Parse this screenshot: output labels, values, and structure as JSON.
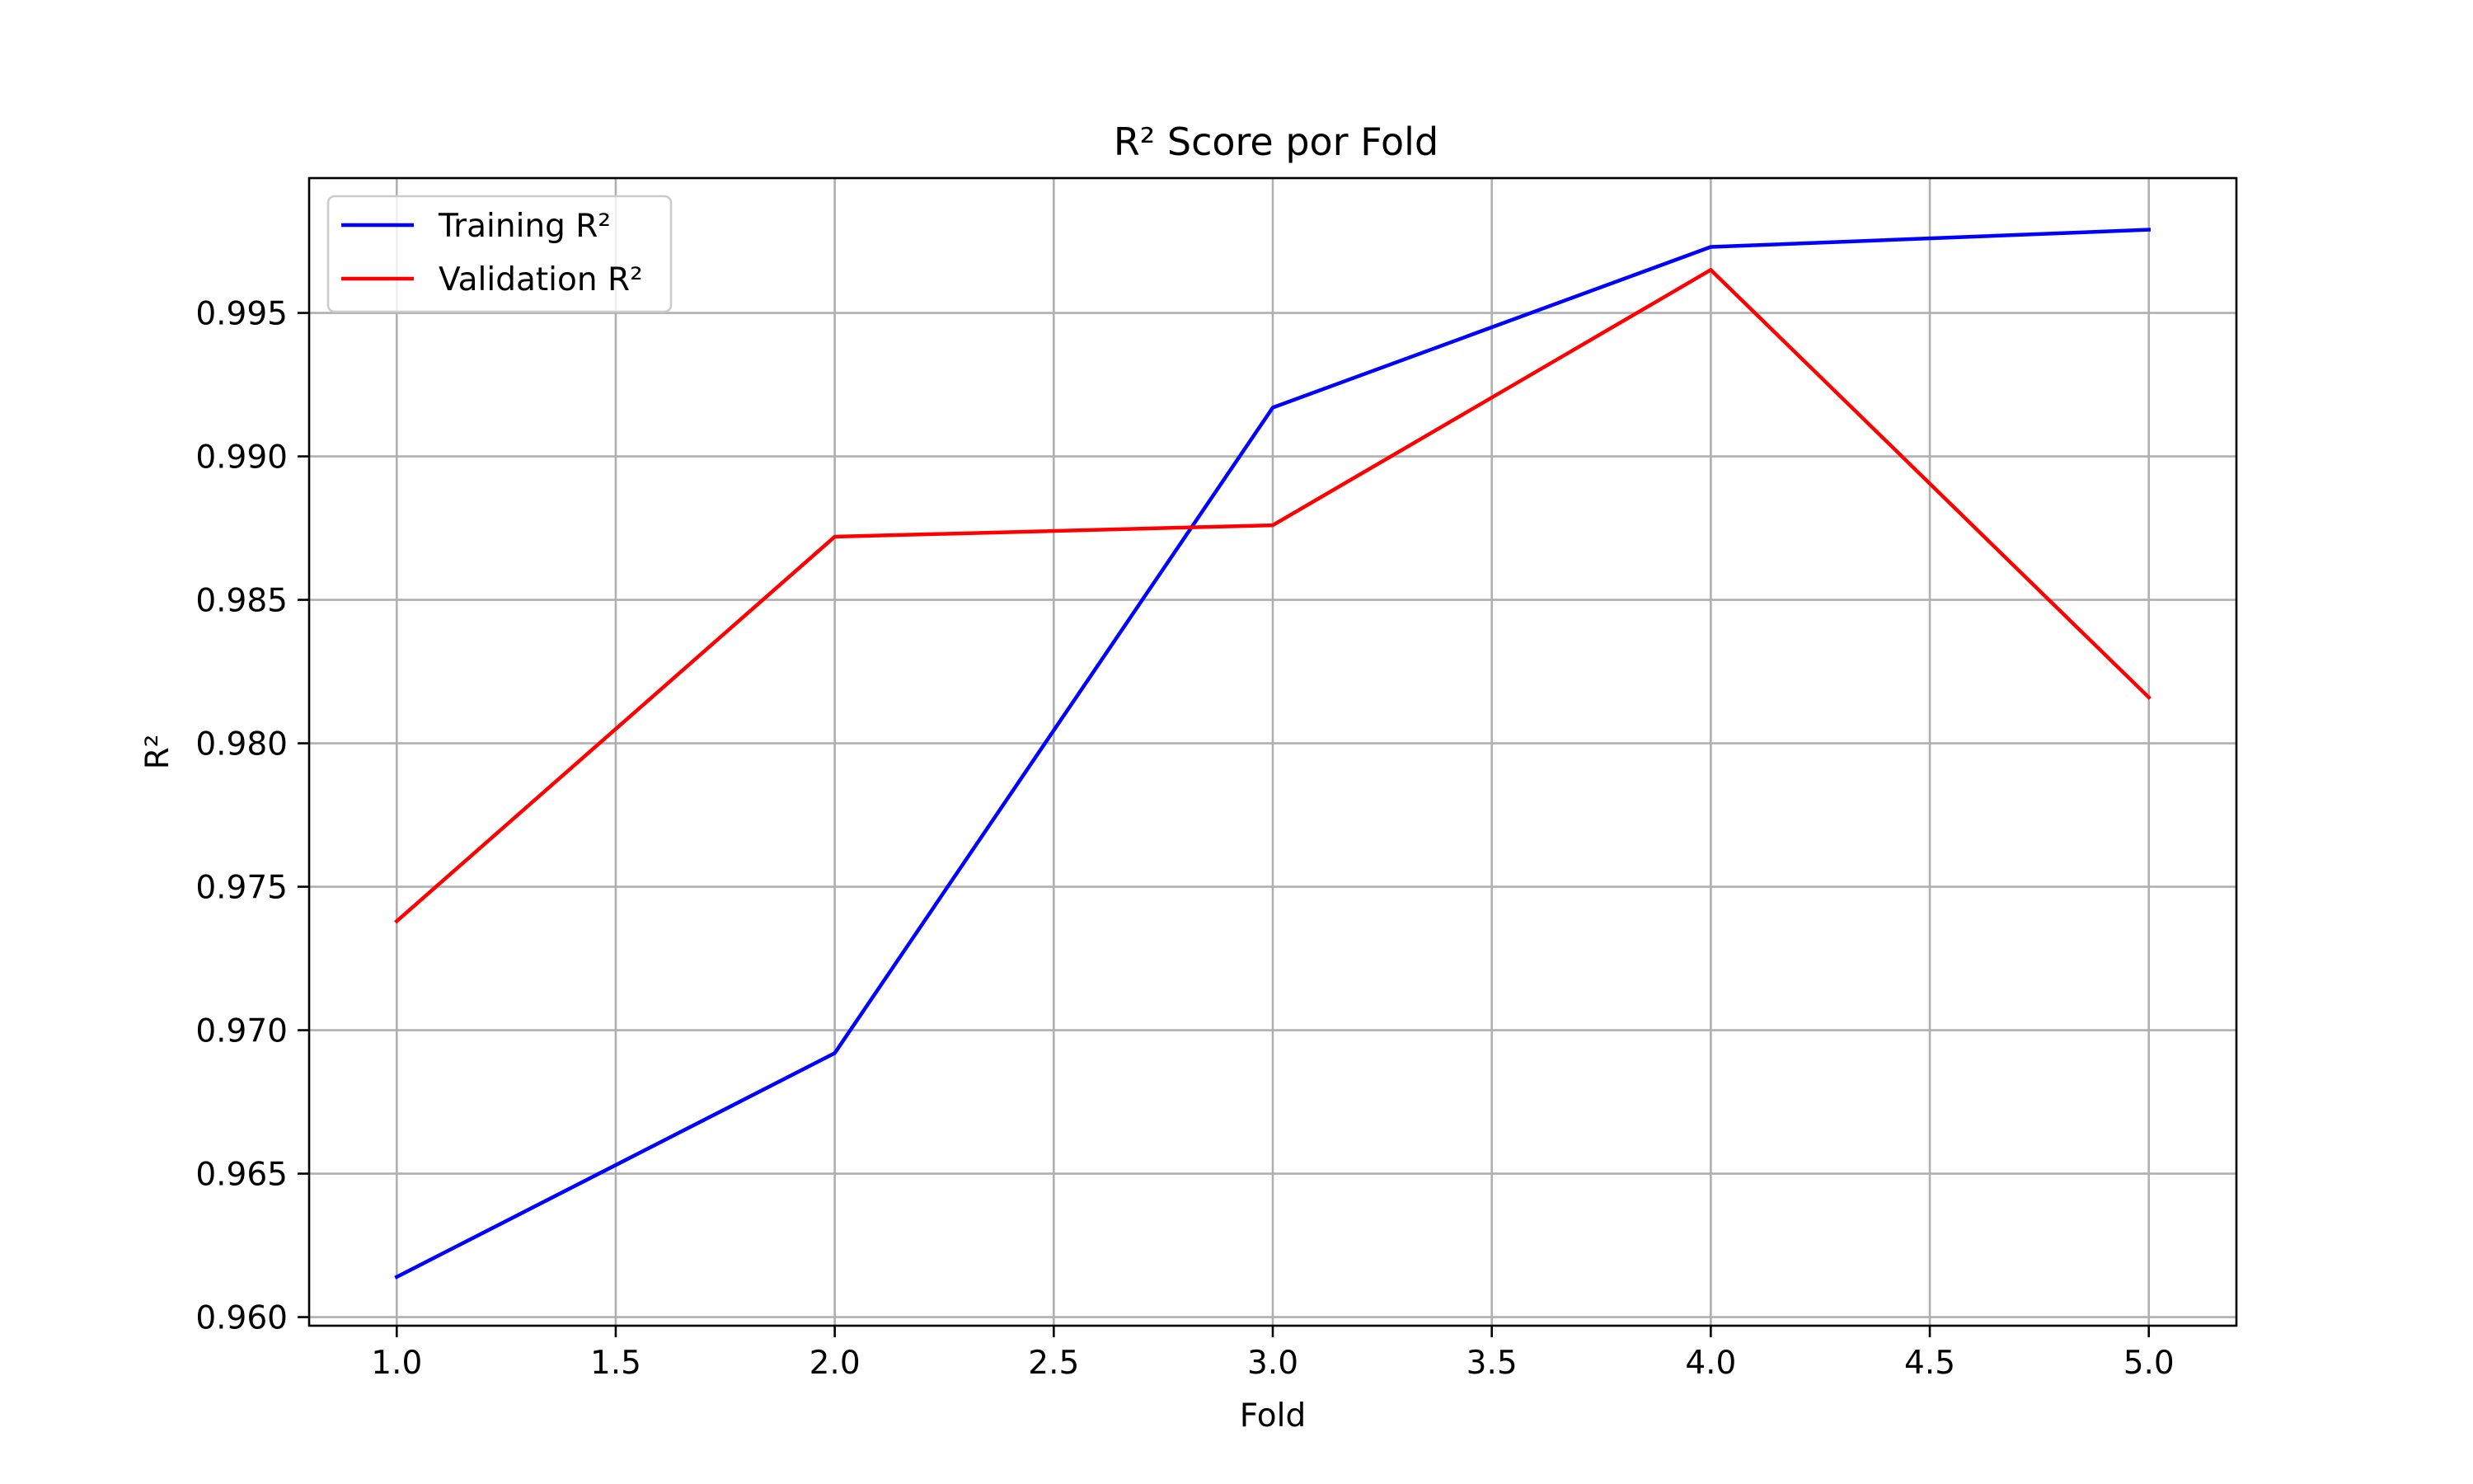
{
  "chart_data": {
    "type": "line",
    "title": "R² Score por Fold",
    "xlabel": "Fold",
    "ylabel": "R²",
    "x": [
      1,
      2,
      3,
      4,
      5
    ],
    "xlim": [
      0.8,
      5.2
    ],
    "ylim": [
      0.9597,
      0.9997
    ],
    "xticks": [
      "1.0",
      "1.5",
      "2.0",
      "2.5",
      "3.0",
      "3.5",
      "4.0",
      "4.5",
      "5.0"
    ],
    "yticks": [
      "0.960",
      "0.965",
      "0.970",
      "0.975",
      "0.980",
      "0.985",
      "0.990",
      "0.995"
    ],
    "grid": true,
    "legend_position": "top-left",
    "series": [
      {
        "name": "Training R²",
        "color": "#0000ff",
        "values": [
          0.9614,
          0.9692,
          0.9917,
          0.9973,
          0.9979
        ]
      },
      {
        "name": "Validation R²",
        "color": "#ff0000",
        "values": [
          0.9738,
          0.9872,
          0.9876,
          0.9965,
          0.9816
        ]
      }
    ]
  }
}
